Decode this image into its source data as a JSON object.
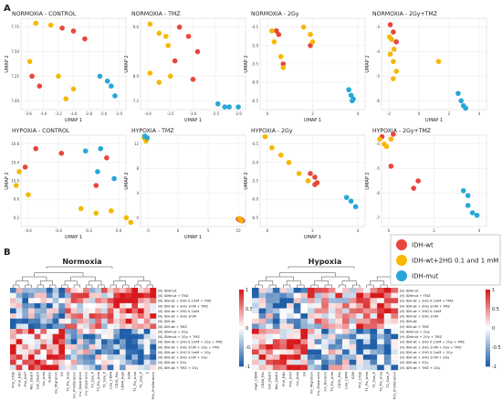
{
  "figure": {
    "panel_a_label": "A",
    "panel_b_label": "B"
  },
  "colors": {
    "idh_wt": "#e8463c",
    "idh_wt_2hg": "#f6b800",
    "idh_mut": "#27a7d8",
    "heat_high": "#d7191c",
    "heat_mid": "#ffffff",
    "heat_low": "#1f5fa8"
  },
  "chart_data": [
    {
      "type": "scatter",
      "title": "NORMOXIA - CONTROL",
      "xlabel": "UMAP 1",
      "ylabel": "UMAP 2",
      "xticks": [
        "-3.6",
        "-3.4",
        "-3.2",
        "-3.0",
        "-2.8",
        "-2.6",
        "-2.4"
      ],
      "yticks": [
        "7.75",
        "7.50",
        "7.25",
        "7.00"
      ],
      "series": [
        {
          "name": "IDH-wt",
          "points": [
            [
              -3.15,
              7.74
            ],
            [
              -3.0,
              7.71
            ],
            [
              -2.85,
              7.63
            ],
            [
              -3.45,
              7.15
            ],
            [
              -3.55,
              7.25
            ]
          ]
        },
        {
          "name": "IDH-wt+2HG 0.1 and 1 mM",
          "points": [
            [
              -3.5,
              7.79
            ],
            [
              -3.3,
              7.77
            ],
            [
              -3.58,
              7.4
            ],
            [
              -3.2,
              7.25
            ],
            [
              -3.0,
              7.12
            ],
            [
              -3.1,
              7.02
            ]
          ]
        },
        {
          "name": "IDH-mut",
          "points": [
            [
              -2.65,
              7.25
            ],
            [
              -2.55,
              7.2
            ],
            [
              -2.5,
              7.15
            ],
            [
              -2.45,
              7.05
            ]
          ]
        }
      ]
    },
    {
      "type": "scatter",
      "title": "NORMOXIA - TMZ",
      "xlabel": "UMAP 1",
      "ylabel": "UMAP 2",
      "xticks": [
        "-4.0",
        "-3.5",
        "-3.0",
        "-2.5",
        "-2.0"
      ],
      "yticks": [
        "9.6",
        "8.0",
        "7.2"
      ],
      "series": [
        {
          "name": "IDH-wt",
          "points": [
            [
              -3.3,
              9.6
            ],
            [
              -3.1,
              9.3
            ],
            [
              -2.9,
              8.8
            ],
            [
              -3.4,
              8.5
            ],
            [
              -3.0,
              7.9
            ]
          ]
        },
        {
          "name": "IDH-wt+2HG 0.1 and 1 mM",
          "points": [
            [
              -3.95,
              9.7
            ],
            [
              -3.75,
              9.4
            ],
            [
              -3.6,
              9.3
            ],
            [
              -3.55,
              9.0
            ],
            [
              -3.95,
              8.1
            ],
            [
              -3.75,
              7.8
            ],
            [
              -3.5,
              8.0
            ]
          ]
        },
        {
          "name": "IDH-mut",
          "points": [
            [
              -2.45,
              7.1
            ],
            [
              -2.3,
              7.0
            ],
            [
              -2.2,
              7.0
            ],
            [
              -2.0,
              7.0
            ]
          ]
        }
      ]
    },
    {
      "type": "scatter",
      "title": "NORMOXIA - 2Gy",
      "xlabel": "UMAP 1",
      "ylabel": "UMAP 2",
      "xticks": [
        "0",
        "2",
        "4"
      ],
      "yticks": [
        "-4.5",
        "-5.0",
        "-5.5",
        "-6.0",
        "-6.5"
      ],
      "series": [
        {
          "name": "IDH-wt",
          "points": [
            [
              0.4,
              -4.6
            ],
            [
              0.5,
              -4.7
            ],
            [
              0.7,
              -5.5
            ],
            [
              1.9,
              -5.0
            ]
          ]
        },
        {
          "name": "IDH-wt+2HG 0.1 and 1 mM",
          "points": [
            [
              0.2,
              -4.6
            ],
            [
              0.3,
              -4.9
            ],
            [
              0.6,
              -5.3
            ],
            [
              1.6,
              -4.5
            ],
            [
              1.9,
              -4.7
            ],
            [
              2.0,
              -4.9
            ],
            [
              0.7,
              -5.6
            ]
          ]
        },
        {
          "name": "IDH-mut",
          "points": [
            [
              3.6,
              -6.2
            ],
            [
              3.7,
              -6.35
            ],
            [
              3.75,
              -6.5
            ],
            [
              3.8,
              -6.45
            ]
          ]
        }
      ]
    },
    {
      "type": "scatter",
      "title": "NORMOXIA - 2Gy+TMZ",
      "xlabel": "UMAP 1",
      "ylabel": "UMAP 2",
      "xticks": [
        "-2",
        "0",
        "2",
        "4"
      ],
      "yticks": [
        "-3",
        "-4",
        "-5",
        "-6"
      ],
      "series": [
        {
          "name": "IDH-wt",
          "points": [
            [
              -1.9,
              -2.9
            ],
            [
              -1.7,
              -3.2
            ],
            [
              -1.5,
              -3.6
            ]
          ]
        },
        {
          "name": "IDH-wt+2HG 0.1 and 1 mM",
          "points": [
            [
              -1.95,
              -3.4
            ],
            [
              -1.8,
              -3.5
            ],
            [
              -1.65,
              -3.9
            ],
            [
              -1.9,
              -4.1
            ],
            [
              -1.7,
              -4.4
            ],
            [
              -1.5,
              -4.8
            ],
            [
              -1.7,
              -5.1
            ],
            [
              1.3,
              -4.4
            ]
          ]
        },
        {
          "name": "IDH-mut",
          "points": [
            [
              2.6,
              -5.7
            ],
            [
              2.8,
              -6.0
            ],
            [
              2.95,
              -6.2
            ],
            [
              3.1,
              -6.3
            ]
          ]
        }
      ]
    },
    {
      "type": "scatter",
      "title": "HYPOXIA - CONTROL",
      "xlabel": "UMAP 1",
      "ylabel": "UMAP 2",
      "xticks": [
        "-0.6",
        "-0.4",
        "-0.2",
        "0.0"
      ],
      "yticks": [
        "10.8",
        "10.4",
        "10.0",
        "9.6",
        "9.2"
      ],
      "series": [
        {
          "name": "IDH-wt",
          "points": [
            [
              -0.55,
              10.7
            ],
            [
              -0.38,
              10.6
            ],
            [
              -0.62,
              10.3
            ],
            [
              -0.08,
              10.5
            ],
            [
              -0.15,
              9.9
            ]
          ]
        },
        {
          "name": "IDH-wt+2HG 0.1 and 1 mM",
          "points": [
            [
              -0.66,
              10.2
            ],
            [
              -0.68,
              9.9
            ],
            [
              -0.6,
              9.7
            ],
            [
              -0.25,
              9.4
            ],
            [
              -0.15,
              9.3
            ],
            [
              -0.05,
              9.35
            ],
            [
              0.05,
              9.2
            ],
            [
              0.08,
              9.1
            ]
          ]
        },
        {
          "name": "IDH-mut",
          "points": [
            [
              -0.22,
              10.65
            ],
            [
              -0.12,
              10.7
            ],
            [
              -0.14,
              10.2
            ],
            [
              -0.03,
              10.05
            ]
          ]
        }
      ]
    },
    {
      "type": "scatter",
      "title": "HYPOXIA - TMZ",
      "xlabel": "UMAP 1",
      "ylabel": "UMAP 2",
      "xticks": [
        "-5",
        "0",
        "5",
        "10"
      ],
      "yticks": [
        "12",
        "8",
        "4",
        "0"
      ],
      "series": [
        {
          "name": "IDH-wt",
          "points": [
            [
              10.0,
              -0.2
            ],
            [
              10.3,
              -0.4
            ],
            [
              10.5,
              -0.3
            ],
            [
              10.7,
              -0.5
            ]
          ]
        },
        {
          "name": "IDH-wt+2HG 0.1 and 1 mM",
          "points": [
            [
              -5.6,
              13.0
            ],
            [
              -5.3,
              12.5
            ],
            [
              -5.2,
              12.8
            ],
            [
              10.2,
              -0.1
            ],
            [
              10.5,
              -0.5
            ]
          ]
        },
        {
          "name": "IDH-mut",
          "points": [
            [
              -5.5,
              13.3
            ],
            [
              -5.1,
              13.0
            ]
          ]
        }
      ]
    },
    {
      "type": "scatter",
      "title": "HYPOXIA - 2Gy",
      "xlabel": "UMAP 1",
      "ylabel": "UMAP 2",
      "xticks": [
        "0",
        "2",
        "4"
      ],
      "yticks": [
        "-4.5",
        "-5.0",
        "-5.5",
        "-6.0",
        "-6.5"
      ],
      "series": [
        {
          "name": "IDH-wt",
          "points": [
            [
              1.9,
              -5.3
            ],
            [
              2.1,
              -5.4
            ],
            [
              2.2,
              -5.55
            ],
            [
              2.1,
              -5.6
            ]
          ]
        },
        {
          "name": "IDH-wt+2HG 0.1 and 1 mM",
          "points": [
            [
              -0.1,
              -4.3
            ],
            [
              0.2,
              -4.6
            ],
            [
              0.6,
              -4.8
            ],
            [
              0.95,
              -5.0
            ],
            [
              1.4,
              -5.3
            ],
            [
              1.8,
              -5.5
            ]
          ]
        },
        {
          "name": "IDH-mut",
          "points": [
            [
              3.5,
              -5.95
            ],
            [
              3.7,
              -6.05
            ],
            [
              3.9,
              -6.2
            ]
          ]
        }
      ]
    },
    {
      "type": "scatter",
      "title": "HYPOXIA - 2Gy+TMZ",
      "xlabel": "UMAP 1",
      "ylabel": "UMAP 2",
      "xticks": [
        "0",
        "2",
        "4"
      ],
      "yticks": [
        "-4",
        "-5",
        "-6",
        "-7"
      ],
      "series": [
        {
          "name": "IDH-wt",
          "points": [
            [
              -0.3,
              -3.7
            ],
            [
              0.2,
              -3.6
            ],
            [
              0.1,
              -4.9
            ],
            [
              1.3,
              -5.5
            ],
            [
              1.1,
              -5.8
            ]
          ]
        },
        {
          "name": "IDH-wt+2HG 0.1 and 1 mM",
          "points": [
            [
              -0.4,
              -3.8
            ],
            [
              -0.2,
              -4.0
            ],
            [
              -0.1,
              -4.1
            ],
            [
              0.1,
              -3.8
            ]
          ]
        },
        {
          "name": "IDH-mut",
          "points": [
            [
              3.3,
              -5.9
            ],
            [
              3.5,
              -6.1
            ],
            [
              3.5,
              -6.5
            ],
            [
              3.7,
              -6.8
            ],
            [
              3.9,
              -6.9
            ]
          ]
        }
      ]
    },
    {
      "type": "heatmap",
      "title": "Normoxia",
      "row_labels": [
        "(N) IDHmut",
        "(N) IDHmut + TMZ",
        "(N) IDH-wt + 2HG 0.1mM + TMZ",
        "(N) IDH-wt + 2HG 1mM + TMZ",
        "(N) IDH-wt + 2HG 0.1mM",
        "(N) IDH-wt + 2HG 1mM",
        "(N) IDH-wt",
        "(N) IDH-wt + TMZ",
        "(N) IDHmut + 2Gy",
        "(N) IDHmut + 2Gy + TMZ",
        "(N) IDH-wt + 2HG 0.1mM + 2Gy + TMZ",
        "(N) IDH-wt + 2HG 1mM + 2Gy + TMZ",
        "(N) IDH-wt + 2HG 0.1mM + 2Gy",
        "(N) IDH-wt + 2HG 1mM + 2Gy",
        "(N) IDH-wt + 2Gy",
        "(N) IDH-wt + TMZ + 2Gy"
      ],
      "col_labels": [
        "Prol_CFSE",
        "Prol_EdU",
        "Prol_Ki67",
        "Nec_Death",
        "Cell_Death",
        "Inv_Area",
        "SubG1",
        "Inv_Migration",
        "G0",
        "T2_Pix_Area",
        "Inv_Proliferation",
        "Inv_Separation",
        "Inv_Expansion",
        "T3_Size_P",
        "T3_Pix_Area",
        "T2_Size_P",
        "Low_CD44",
        "CD31_Pos",
        "CD44_High",
        "G2M",
        "T1_Pix_Area",
        "T1_Size_P",
        "S",
        "Prol_Proliferation"
      ],
      "colorbar_ticks": [
        "1",
        "0.5",
        "0",
        "-0.5",
        "-1"
      ]
    },
    {
      "type": "heatmap",
      "title": "Hypoxia",
      "row_labels": [
        "(H) IDHmut",
        "(H) IDHmut + TMZ",
        "(H) IDH-wt + 2HG 0.1mM + TMZ",
        "(H) IDH-wt + 2HG 1mM + TMZ",
        "(H) IDH-wt + 2HG 0.1mM",
        "(H) IDH-wt + 2HG 1mM",
        "(H) IDH-wt",
        "(H) IDH-wt + TMZ",
        "(H) IDHmut + 2Gy",
        "(H) IDHmut + 2Gy + TMZ",
        "(H) IDH-wt + 2HG 0.1mM + 2Gy + TMZ",
        "(H) IDH-wt + 2HG 1mM + 2Gy + TMZ",
        "(H) IDH-wt + 2HG 0.1mM + 2Gy",
        "(H) IDH-wt + 2HG 1mM + 2Gy",
        "(H) IDH-wt + 2Gy",
        "(H) IDH-wt + TMZ + 2Gy"
      ],
      "col_labels": [
        "High_CD44",
        "CD44_Pos",
        "Cell_Death",
        "Nec_Death",
        "Prol_EdU",
        "Prol_Ki67",
        "Inv_Area",
        "G0",
        "Inv_Migration",
        "Inv_Expansion",
        "Inv_Division",
        "T3_Pix_Area",
        "CD31_Pos",
        "Low_CD44",
        "G2M",
        "Prol_CFSE",
        "T1_Pix_Area",
        "T1_Size_P",
        "T2_Pix_Area",
        "T2_Size_P",
        "Prol_Proliferation"
      ],
      "colorbar_ticks": [
        "1",
        "0.5",
        "0",
        "-0.5",
        "-1"
      ]
    }
  ],
  "legend": {
    "entries": [
      {
        "label": "IDH-wt",
        "color": "#e8463c"
      },
      {
        "label": "IDH-wt+2HG 0.1 and 1 mM",
        "color": "#f6b800"
      },
      {
        "label": "IDH-mut",
        "color": "#27a7d8"
      }
    ]
  }
}
